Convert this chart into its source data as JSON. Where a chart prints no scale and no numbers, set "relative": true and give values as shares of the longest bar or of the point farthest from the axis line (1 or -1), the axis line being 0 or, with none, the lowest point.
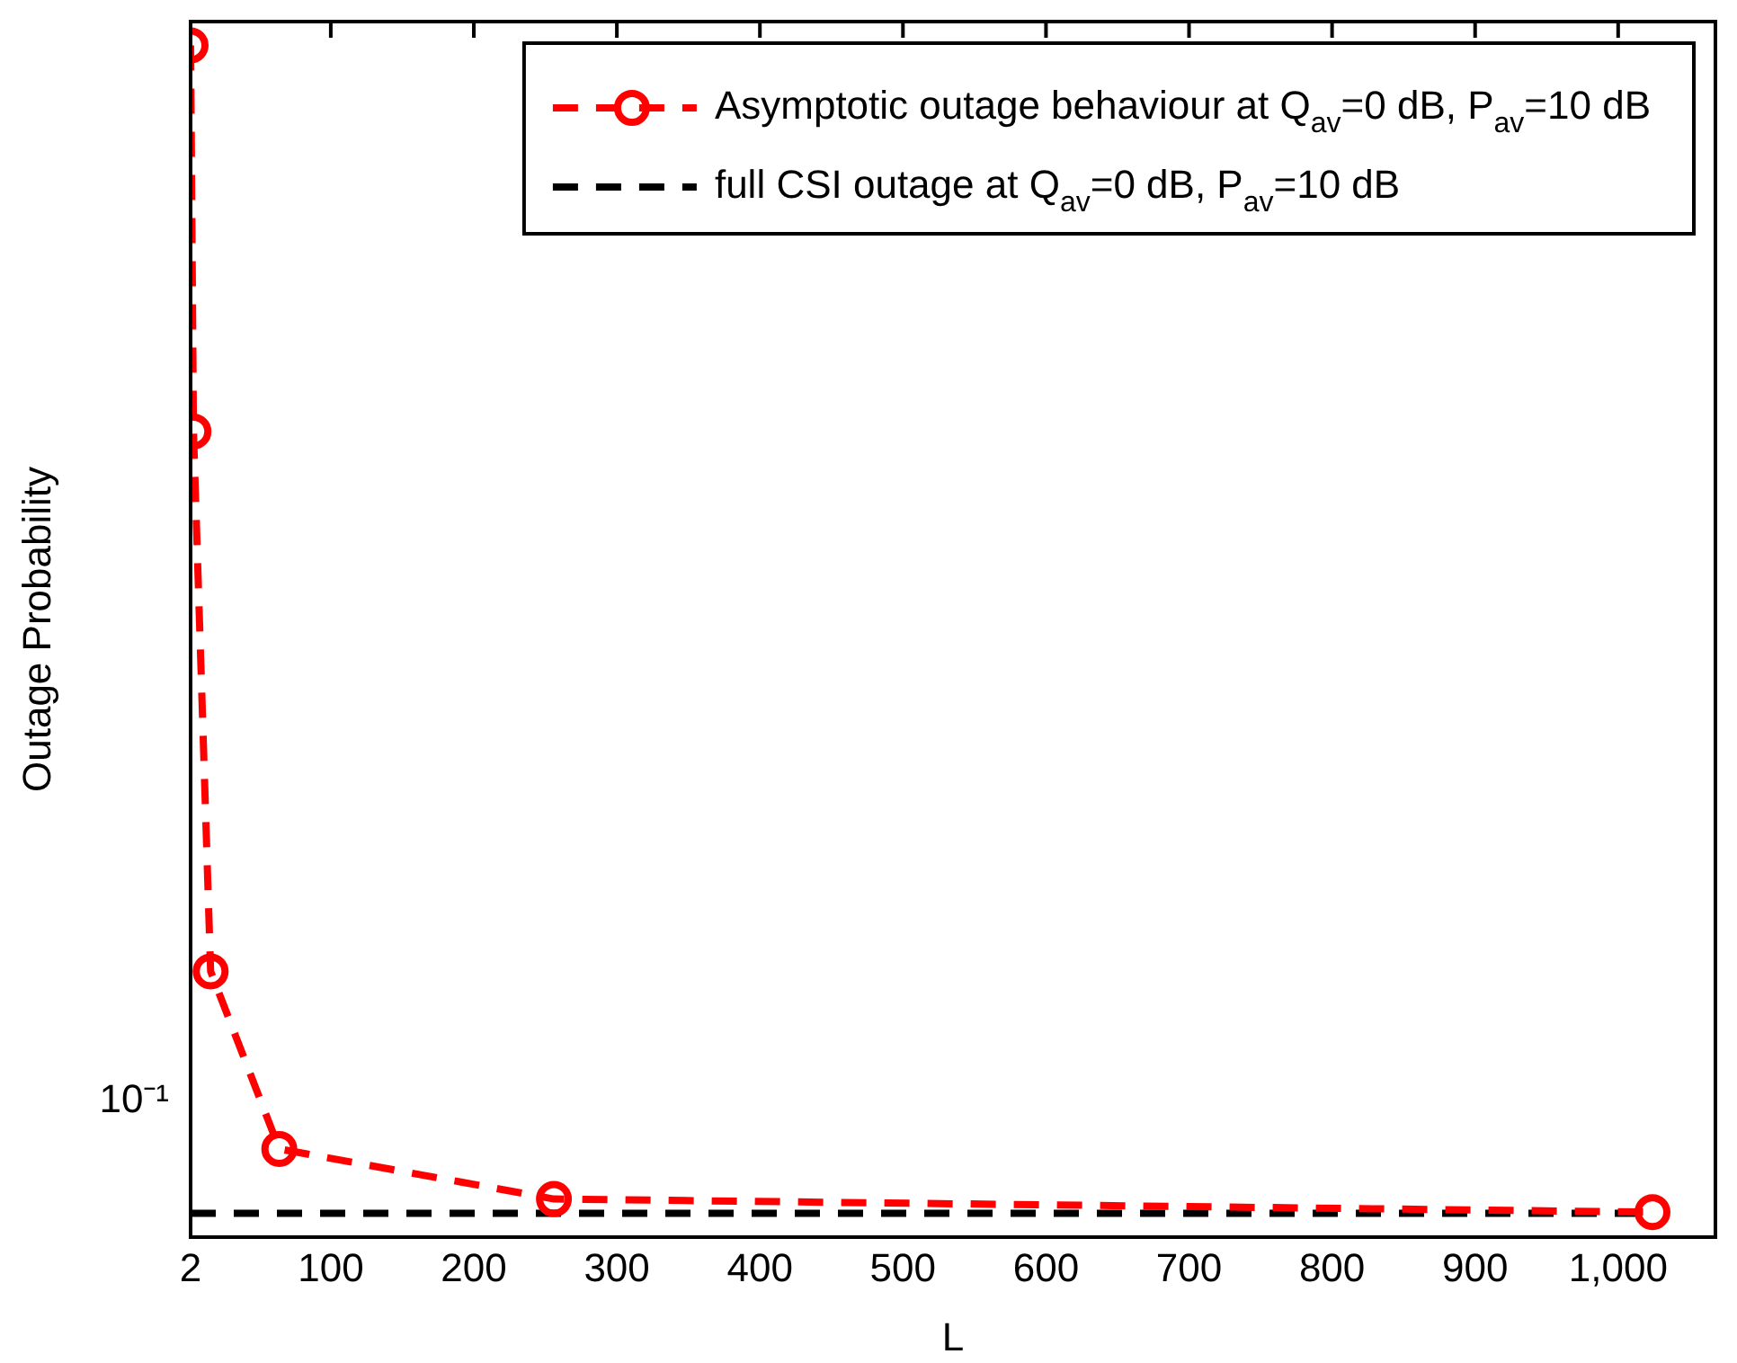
{
  "chart_data": {
    "type": "line",
    "xlabel": "L",
    "ylabel": "Outage Probability",
    "xlim": [
      2,
      1068
    ],
    "xticks": [
      2,
      100,
      200,
      300,
      400,
      500,
      600,
      700,
      800,
      900,
      {
        "value": 1000,
        "label": "1,000"
      }
    ],
    "relative": true,
    "annotations": [
      "10⁻¹"
    ],
    "grid": false,
    "legend": "top right",
    "series": [
      {
        "name": "Asymptotic outage behaviour at Q$_{av}$=0 dB, P$_{av}$=10 dB",
        "color": "#ff0000",
        "x": [
          2,
          4,
          16,
          64,
          256,
          1024
        ],
        "values": [
          1,
          0.676,
          0.223,
          0.074,
          0.032,
          0.021
        ],
        "marker": "circle",
        "line_style": "dashed"
      },
      {
        "name": "full CSI outage at Q$_{av}$=0 dB, P$_{av}$=10 dB",
        "color": "#000000",
        "x": [
          2,
          1024
        ],
        "values": [
          0.02,
          0.02
        ],
        "marker": "none",
        "line_style": "dashed"
      }
    ]
  }
}
